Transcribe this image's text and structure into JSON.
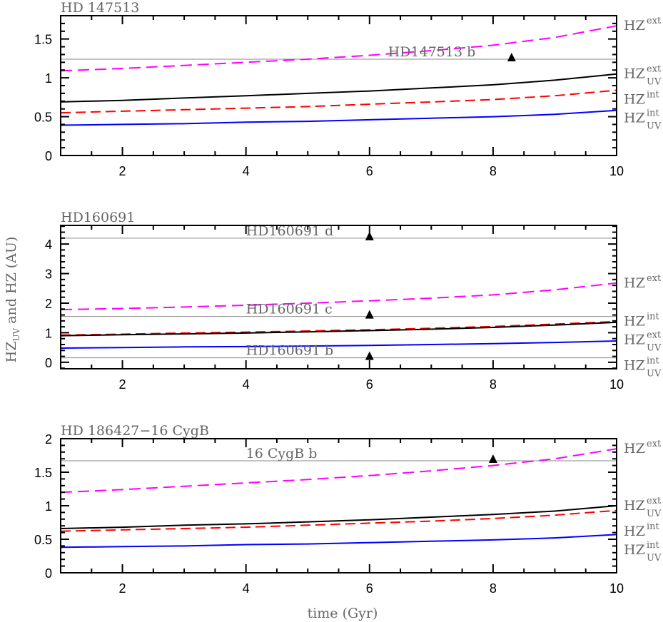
{
  "chart_data": {
    "type": "line",
    "xlabel": "time (Gyr)",
    "ylabel": {
      "base": "HZ",
      "sub": "UV",
      "rest": " and HZ (AU)"
    },
    "xlim": [
      1,
      10
    ],
    "x_ticks": [
      2,
      4,
      6,
      8,
      10
    ],
    "colors": {
      "HZ_ext": "#ff00ff",
      "HZ_UV_ext": "#000000",
      "HZ_int": "#ff0000",
      "HZ_UV_int": "#0000ff",
      "planet_line": "#888888"
    },
    "panels": [
      {
        "title": "HD 147513",
        "ylim": [
          0,
          1.8
        ],
        "y_ticks": [
          0,
          0.5,
          1,
          1.5
        ],
        "y_tick_labels": [
          "0",
          "0.5",
          "1",
          "1.5"
        ],
        "y_minor": 0.1,
        "x": [
          1,
          2,
          3,
          4,
          5,
          6,
          7,
          8,
          9,
          10
        ],
        "series": [
          {
            "key": "HZ_ext",
            "label": {
              "base": "HZ",
              "sup": "ext",
              "sub": ""
            },
            "style": "dashed",
            "values": [
              1.09,
              1.12,
              1.16,
              1.2,
              1.24,
              1.29,
              1.35,
              1.42,
              1.52,
              1.67
            ]
          },
          {
            "key": "HZ_UV_ext",
            "label": {
              "base": "HZ",
              "sup": "ext",
              "sub": "UV"
            },
            "style": "solid",
            "values": [
              0.69,
              0.71,
              0.74,
              0.77,
              0.8,
              0.83,
              0.87,
              0.91,
              0.97,
              1.05
            ]
          },
          {
            "key": "HZ_int",
            "label": {
              "base": "HZ",
              "sup": "int",
              "sub": ""
            },
            "style": "dashed",
            "values": [
              0.55,
              0.57,
              0.59,
              0.61,
              0.63,
              0.66,
              0.69,
              0.72,
              0.77,
              0.84
            ]
          },
          {
            "key": "HZ_UV_int",
            "label": {
              "base": "HZ",
              "sup": "int",
              "sub": "UV"
            },
            "style": "solid",
            "values": [
              0.39,
              0.4,
              0.41,
              0.43,
              0.44,
              0.46,
              0.48,
              0.5,
              0.53,
              0.58
            ]
          }
        ],
        "planets": [
          {
            "name": "HD147513 b",
            "a": 1.24,
            "t": 8.3,
            "label_x": 6.3
          }
        ]
      },
      {
        "title": "HD160691",
        "ylim": [
          -0.22,
          4.63
        ],
        "y_ticks": [
          0,
          1,
          2,
          3,
          4
        ],
        "y_tick_labels": [
          "0",
          "1",
          "2",
          "3",
          "4"
        ],
        "y_minor": 0.2,
        "x": [
          1,
          2,
          3,
          4,
          5,
          6,
          7,
          8,
          9,
          10
        ],
        "series": [
          {
            "key": "HZ_ext",
            "label": {
              "base": "HZ",
              "sup": "ext",
              "sub": ""
            },
            "style": "dashed",
            "values": [
              1.78,
              1.82,
              1.87,
              1.93,
              2.0,
              2.08,
              2.17,
              2.28,
              2.45,
              2.68
            ]
          },
          {
            "key": "HZ_int",
            "label": {
              "base": "HZ",
              "sup": "int",
              "sub": ""
            },
            "style": "dashed",
            "values": [
              0.92,
              0.95,
              0.99,
              1.02,
              1.06,
              1.1,
              1.15,
              1.21,
              1.29,
              1.38
            ]
          },
          {
            "key": "HZ_UV_ext",
            "label": {
              "base": "HZ",
              "sup": "ext",
              "sub": "UV"
            },
            "style": "solid",
            "values": [
              0.9,
              0.93,
              0.96,
              0.99,
              1.03,
              1.07,
              1.12,
              1.18,
              1.26,
              1.35
            ]
          },
          {
            "key": "HZ_UV_int",
            "label": {
              "base": "HZ",
              "sup": "int",
              "sub": "UV"
            },
            "style": "solid",
            "values": [
              0.48,
              0.5,
              0.52,
              0.53,
              0.55,
              0.57,
              0.6,
              0.63,
              0.67,
              0.72
            ]
          }
        ],
        "planets": [
          {
            "name": "HD160691 d",
            "a": 4.2,
            "t": 6,
            "label_x": 4.0
          },
          {
            "name": "HD160691 c",
            "a": 1.55,
            "t": 6,
            "label_x": 4.0
          },
          {
            "name": "HD160691 b",
            "a": 0.15,
            "t": 6,
            "label_x": 4.0
          }
        ]
      },
      {
        "title": "HD 186427−16 CygB",
        "ylim": [
          0,
          2.0
        ],
        "y_ticks": [
          0,
          0.5,
          1,
          1.5,
          2
        ],
        "y_tick_labels": [
          "0",
          "0.5",
          "1",
          "1.5",
          "2"
        ],
        "y_minor": 0.1,
        "x": [
          1,
          2,
          3,
          4,
          5,
          6,
          7,
          8,
          9,
          10
        ],
        "series": [
          {
            "key": "HZ_ext",
            "label": {
              "base": "HZ",
              "sup": "ext",
              "sub": ""
            },
            "style": "dashed",
            "values": [
              1.2,
              1.24,
              1.29,
              1.34,
              1.39,
              1.45,
              1.52,
              1.6,
              1.7,
              1.85
            ]
          },
          {
            "key": "HZ_UV_ext",
            "label": {
              "base": "HZ",
              "sup": "ext",
              "sub": "UV"
            },
            "style": "solid",
            "values": [
              0.66,
              0.68,
              0.71,
              0.73,
              0.76,
              0.79,
              0.83,
              0.87,
              0.92,
              1.0
            ]
          },
          {
            "key": "HZ_int",
            "label": {
              "base": "HZ",
              "sup": "int",
              "sub": ""
            },
            "style": "dashed",
            "values": [
              0.62,
              0.64,
              0.66,
              0.68,
              0.71,
              0.74,
              0.77,
              0.81,
              0.86,
              0.93
            ]
          },
          {
            "key": "HZ_UV_int",
            "label": {
              "base": "HZ",
              "sup": "int",
              "sub": "UV"
            },
            "style": "solid",
            "values": [
              0.38,
              0.39,
              0.4,
              0.42,
              0.43,
              0.45,
              0.47,
              0.49,
              0.52,
              0.57
            ]
          }
        ],
        "planets": [
          {
            "name": "16 CygB b",
            "a": 1.67,
            "t": 8,
            "label_x": 4.0
          }
        ]
      }
    ]
  }
}
